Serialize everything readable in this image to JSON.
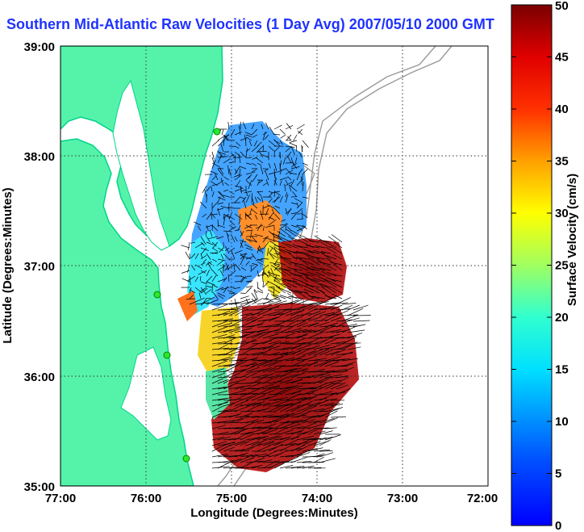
{
  "title": "Southern Mid-Atlantic Raw Velocities (1 Day Avg) 2007/05/10 2000 GMT",
  "map": {
    "x_label": "Longitude (Degrees:Minutes)",
    "y_label": "Latitude (Degrees:Minutes)",
    "x_ticks": [
      "77:00",
      "76:00",
      "75:00",
      "74:00",
      "73:00",
      "72:00"
    ],
    "y_ticks": [
      "39:00",
      "38:00",
      "37:00",
      "36:00",
      "35:00"
    ],
    "lon_range": [
      -77,
      -72
    ],
    "lat_range": [
      35,
      39
    ],
    "grid": true
  },
  "colorbar": {
    "label": "Surface Velocity (cm/s)",
    "ticks": [
      "50",
      "45",
      "40",
      "35",
      "30",
      "25",
      "20",
      "15",
      "10",
      "5",
      "0"
    ],
    "range": [
      0,
      50
    ],
    "colormap": "jet"
  },
  "colors": {
    "title": "#1f33ff",
    "land": "#55f3a9",
    "coastline": "#00d48a",
    "bathymetry": "#9a9a9a",
    "vectors": "#000000"
  }
}
